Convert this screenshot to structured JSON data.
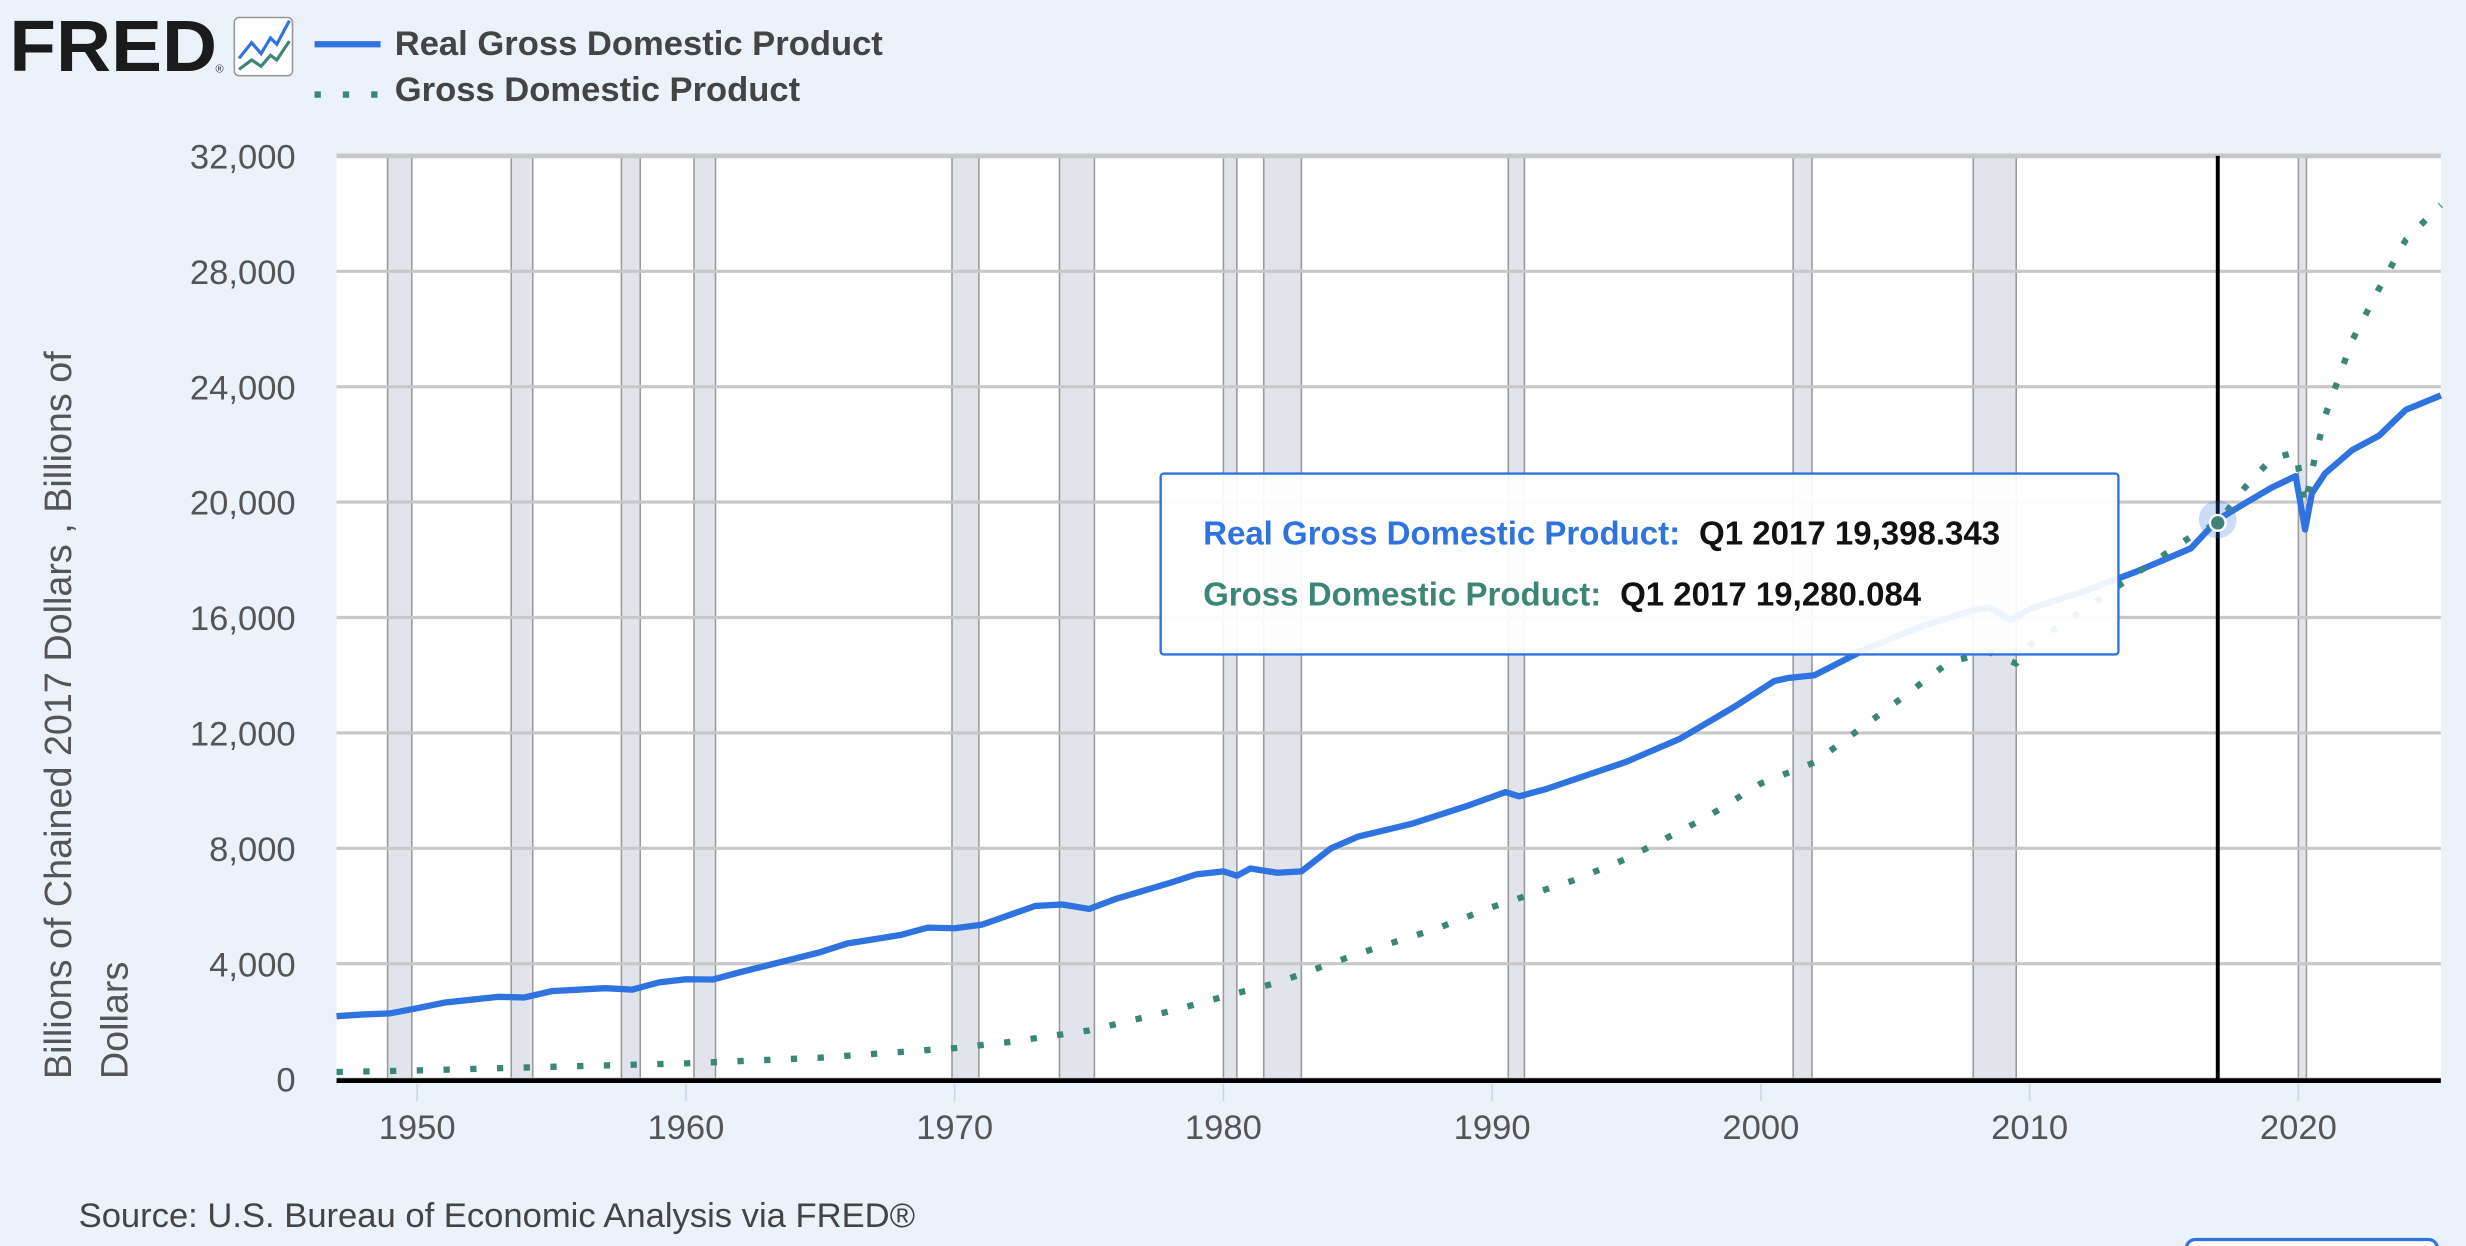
{
  "logo": {
    "text": "FRED",
    "registered": "®"
  },
  "legend": [
    {
      "label": "Real Gross Domestic Product",
      "color": "#2f73e0",
      "style": "solid"
    },
    {
      "label": "Gross Domestic Product",
      "color": "#3c8577",
      "style": "dotted"
    }
  ],
  "source": "Source: U.S. Bureau of Economic Analysis via FRED®",
  "tooltip": {
    "rows": [
      {
        "series": "Real Gross Domestic Product:",
        "value": "Q1 2017 19,398.343",
        "color": "#2f73e0"
      },
      {
        "series": "Gross Domestic Product:",
        "value": "Q1 2017 19,280.084",
        "color": "#3c8577"
      }
    ],
    "date": 2017.0
  },
  "chart_data": {
    "type": "line",
    "title": "",
    "ylabel_lines": [
      "Billions of Chained 2017 Dollars , Billions of",
      "Dollars"
    ],
    "xlabel": "",
    "xlim": [
      1947,
      2025.3
    ],
    "ylim": [
      0,
      32000
    ],
    "xticks": [
      1950,
      1960,
      1970,
      1980,
      1990,
      2000,
      2010,
      2020
    ],
    "yticks": [
      0,
      4000,
      8000,
      12000,
      16000,
      20000,
      24000,
      28000,
      32000
    ],
    "ytick_labels": [
      "0",
      "4,000",
      "8,000",
      "12,000",
      "16,000",
      "20,000",
      "24,000",
      "28,000",
      "32,000"
    ],
    "grid": true,
    "legend_position": "top-left",
    "recession_shading": [
      [
        1948.9,
        1949.8
      ],
      [
        1953.5,
        1954.3
      ],
      [
        1957.6,
        1958.3
      ],
      [
        1960.3,
        1961.1
      ],
      [
        1969.9,
        1970.9
      ],
      [
        1973.9,
        1975.2
      ],
      [
        1980.0,
        1980.5
      ],
      [
        1981.5,
        1982.9
      ],
      [
        1990.6,
        1991.2
      ],
      [
        2001.2,
        2001.9
      ],
      [
        2007.9,
        2009.5
      ],
      [
        2020.0,
        2020.3
      ]
    ],
    "series": [
      {
        "name": "Real Gross Domestic Product",
        "color": "#2f73e0",
        "x": [
          1947,
          1948,
          1949,
          1950,
          1951,
          1953,
          1954,
          1955,
          1957,
          1958,
          1959,
          1960,
          1961,
          1962,
          1965,
          1966,
          1968,
          1969,
          1970,
          1971,
          1973,
          1974,
          1975,
          1976,
          1978,
          1979,
          1980,
          1980.5,
          1981,
          1982,
          1982.9,
          1984,
          1985,
          1987,
          1989,
          1990.5,
          1991,
          1992,
          1995,
          1997,
          1999,
          2000.5,
          2001,
          2002,
          2004,
          2006,
          2007.9,
          2008.5,
          2009.3,
          2010,
          2012,
          2014,
          2016,
          2017,
          2018,
          2019,
          2019.9,
          2020.25,
          2020.5,
          2021,
          2022,
          2023,
          2024,
          2025.3
        ],
        "y": [
          2183,
          2240,
          2280,
          2458,
          2650,
          2850,
          2830,
          3050,
          3150,
          3100,
          3350,
          3460,
          3450,
          3700,
          4400,
          4700,
          5000,
          5250,
          5230,
          5350,
          6000,
          6050,
          5900,
          6250,
          6800,
          7100,
          7200,
          7050,
          7300,
          7150,
          7200,
          8000,
          8400,
          8850,
          9450,
          9950,
          9800,
          10050,
          11000,
          11800,
          12900,
          13800,
          13900,
          14000,
          14950,
          15700,
          16250,
          16350,
          15900,
          16300,
          16900,
          17600,
          18400,
          19398,
          19950,
          20500,
          20900,
          19050,
          20300,
          21000,
          21800,
          22300,
          23200,
          23700
        ]
      },
      {
        "name": "Gross Domestic Product",
        "color": "#3c8577",
        "x": [
          1947,
          1950,
          1955,
          1960,
          1965,
          1970,
          1972,
          1975,
          1978,
          1980,
          1982,
          1985,
          1988,
          1990,
          1993,
          1995,
          1998,
          2000,
          2002,
          2005,
          2007,
          2008.5,
          2009.5,
          2010,
          2012,
          2014,
          2016,
          2017,
          2018,
          2019,
          2019.9,
          2020.25,
          2020.6,
          2021,
          2022,
          2023,
          2024,
          2025.3
        ],
        "y": [
          243,
          300,
          426,
          543,
          743,
          1073,
          1280,
          1685,
          2350,
          2857,
          3340,
          4339,
          5240,
          5963,
          6880,
          7640,
          9090,
          10250,
          10980,
          13040,
          14450,
          14800,
          14400,
          15050,
          16250,
          17550,
          18800,
          19280,
          20500,
          21500,
          21730,
          19900,
          21500,
          23000,
          25600,
          27400,
          29100,
          30300
        ]
      }
    ]
  }
}
